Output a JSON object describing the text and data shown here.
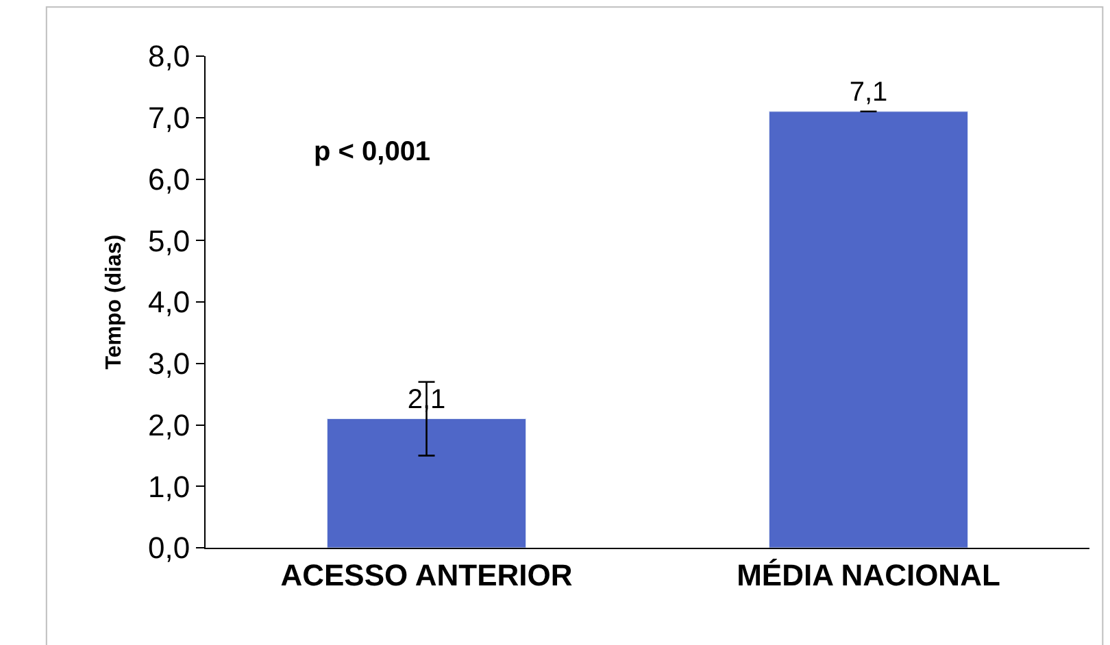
{
  "chart_data": {
    "type": "bar",
    "ylabel": "Tempo (dias)",
    "categories": [
      "ACESSO ANTERIOR",
      "MÉDIA NACIONAL"
    ],
    "values": [
      2.1,
      7.1
    ],
    "value_labels": [
      "2,1",
      "7,1"
    ],
    "errors": [
      0.6,
      0
    ],
    "color": "#4f67c8",
    "ylim": [
      0,
      8
    ],
    "yticks": [
      {
        "value": 0,
        "label": "0,0"
      },
      {
        "value": 1,
        "label": "1,0"
      },
      {
        "value": 2,
        "label": "2,0"
      },
      {
        "value": 3,
        "label": "3,0"
      },
      {
        "value": 4,
        "label": "4,0"
      },
      {
        "value": 5,
        "label": "5,0"
      },
      {
        "value": 6,
        "label": "6,0"
      },
      {
        "value": 7,
        "label": "7,0"
      },
      {
        "value": 8,
        "label": "8,0"
      }
    ],
    "annotations": [
      "p < 0,001"
    ],
    "grid": false
  }
}
